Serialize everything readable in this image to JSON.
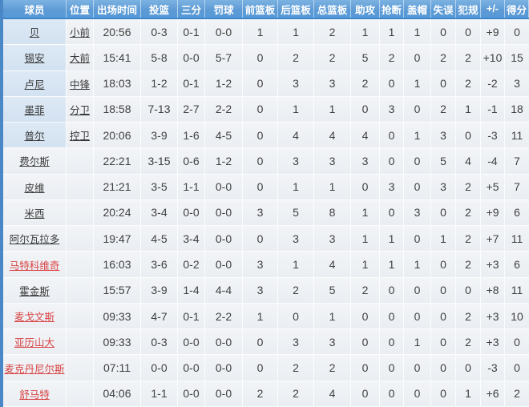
{
  "colors": {
    "header_blue": "#5c9ad4",
    "header_border": "#3e86c9",
    "left_accent": "#4a87c6",
    "starter_name_cell": "#d9e6f3",
    "red_player_name": "#d94545",
    "cell_bg": "#eef1f5",
    "body_text": "#3f3f3f"
  },
  "table": {
    "columns": [
      {
        "key": "name",
        "label": "球员"
      },
      {
        "key": "pos",
        "label": "位置"
      },
      {
        "key": "time",
        "label": "出场时间"
      },
      {
        "key": "fg",
        "label": "投篮"
      },
      {
        "key": "three",
        "label": "三分"
      },
      {
        "key": "ft",
        "label": "罚球"
      },
      {
        "key": "oreb",
        "label": "前篮板"
      },
      {
        "key": "dreb",
        "label": "后篮板"
      },
      {
        "key": "treb",
        "label": "总篮板"
      },
      {
        "key": "ast",
        "label": "助攻"
      },
      {
        "key": "stl",
        "label": "抢断"
      },
      {
        "key": "blk",
        "label": "盖帽"
      },
      {
        "key": "to",
        "label": "失误"
      },
      {
        "key": "pf",
        "label": "犯规"
      },
      {
        "key": "pm",
        "label": "+/-"
      },
      {
        "key": "pts",
        "label": "得分"
      }
    ],
    "rows": [
      {
        "name": "贝",
        "pos": "小前",
        "time": "20:56",
        "fg": "0-3",
        "three": "0-1",
        "ft": "0-0",
        "oreb": "1",
        "dreb": "1",
        "treb": "2",
        "ast": "1",
        "stl": "1",
        "blk": "1",
        "to": "0",
        "pf": "0",
        "pm": "+9",
        "pts": "0",
        "starter": true,
        "red": false
      },
      {
        "name": "锡安",
        "pos": "大前",
        "time": "15:41",
        "fg": "5-8",
        "three": "0-0",
        "ft": "5-7",
        "oreb": "0",
        "dreb": "2",
        "treb": "2",
        "ast": "5",
        "stl": "2",
        "blk": "0",
        "to": "2",
        "pf": "2",
        "pm": "+10",
        "pts": "15",
        "starter": true,
        "red": false
      },
      {
        "name": "卢尼",
        "pos": "中锋",
        "time": "18:03",
        "fg": "1-2",
        "three": "0-1",
        "ft": "1-2",
        "oreb": "0",
        "dreb": "3",
        "treb": "3",
        "ast": "2",
        "stl": "0",
        "blk": "1",
        "to": "0",
        "pf": "2",
        "pm": "-2",
        "pts": "3",
        "starter": true,
        "red": false
      },
      {
        "name": "墨菲",
        "pos": "分卫",
        "time": "18:58",
        "fg": "7-13",
        "three": "2-7",
        "ft": "2-2",
        "oreb": "0",
        "dreb": "1",
        "treb": "1",
        "ast": "0",
        "stl": "3",
        "blk": "0",
        "to": "2",
        "pf": "1",
        "pm": "-1",
        "pts": "18",
        "starter": true,
        "red": false
      },
      {
        "name": "普尔",
        "pos": "控卫",
        "time": "20:06",
        "fg": "3-9",
        "three": "1-6",
        "ft": "4-5",
        "oreb": "0",
        "dreb": "4",
        "treb": "4",
        "ast": "4",
        "stl": "0",
        "blk": "1",
        "to": "3",
        "pf": "0",
        "pm": "-3",
        "pts": "11",
        "starter": true,
        "red": false
      },
      {
        "name": "费尔斯",
        "pos": "",
        "time": "22:21",
        "fg": "3-15",
        "three": "0-6",
        "ft": "1-2",
        "oreb": "0",
        "dreb": "3",
        "treb": "3",
        "ast": "3",
        "stl": "0",
        "blk": "0",
        "to": "5",
        "pf": "4",
        "pm": "-4",
        "pts": "7",
        "starter": false,
        "red": false
      },
      {
        "name": "皮维",
        "pos": "",
        "time": "21:21",
        "fg": "3-5",
        "three": "1-1",
        "ft": "0-0",
        "oreb": "0",
        "dreb": "1",
        "treb": "1",
        "ast": "0",
        "stl": "3",
        "blk": "0",
        "to": "3",
        "pf": "2",
        "pm": "+5",
        "pts": "7",
        "starter": false,
        "red": false
      },
      {
        "name": "米西",
        "pos": "",
        "time": "20:24",
        "fg": "3-4",
        "three": "0-0",
        "ft": "0-0",
        "oreb": "3",
        "dreb": "5",
        "treb": "8",
        "ast": "1",
        "stl": "0",
        "blk": "3",
        "to": "0",
        "pf": "2",
        "pm": "+9",
        "pts": "6",
        "starter": false,
        "red": false
      },
      {
        "name": "阿尔瓦拉多",
        "pos": "",
        "time": "19:47",
        "fg": "4-5",
        "three": "3-4",
        "ft": "0-0",
        "oreb": "0",
        "dreb": "3",
        "treb": "3",
        "ast": "1",
        "stl": "1",
        "blk": "0",
        "to": "1",
        "pf": "2",
        "pm": "+7",
        "pts": "11",
        "starter": false,
        "red": false
      },
      {
        "name": "马特科维奇",
        "pos": "",
        "time": "16:03",
        "fg": "3-6",
        "three": "0-2",
        "ft": "0-0",
        "oreb": "3",
        "dreb": "1",
        "treb": "4",
        "ast": "1",
        "stl": "1",
        "blk": "1",
        "to": "0",
        "pf": "2",
        "pm": "+3",
        "pts": "6",
        "starter": false,
        "red": true
      },
      {
        "name": "霍金斯",
        "pos": "",
        "time": "15:57",
        "fg": "3-9",
        "three": "1-4",
        "ft": "4-4",
        "oreb": "3",
        "dreb": "2",
        "treb": "5",
        "ast": "2",
        "stl": "0",
        "blk": "0",
        "to": "0",
        "pf": "0",
        "pm": "+8",
        "pts": "11",
        "starter": false,
        "red": false
      },
      {
        "name": "麦戈文斯",
        "pos": "",
        "time": "09:33",
        "fg": "4-7",
        "three": "0-1",
        "ft": "2-2",
        "oreb": "1",
        "dreb": "0",
        "treb": "1",
        "ast": "0",
        "stl": "0",
        "blk": "0",
        "to": "0",
        "pf": "2",
        "pm": "+3",
        "pts": "10",
        "starter": false,
        "red": true
      },
      {
        "name": "亚历山大",
        "pos": "",
        "time": "09:33",
        "fg": "0-3",
        "three": "0-0",
        "ft": "0-0",
        "oreb": "0",
        "dreb": "3",
        "treb": "3",
        "ast": "0",
        "stl": "0",
        "blk": "1",
        "to": "0",
        "pf": "2",
        "pm": "+3",
        "pts": "0",
        "starter": false,
        "red": true
      },
      {
        "name": "麦克丹尼尔斯",
        "pos": "",
        "time": "07:11",
        "fg": "0-0",
        "three": "0-0",
        "ft": "0-0",
        "oreb": "0",
        "dreb": "2",
        "treb": "2",
        "ast": "0",
        "stl": "0",
        "blk": "0",
        "to": "0",
        "pf": "0",
        "pm": "-3",
        "pts": "0",
        "starter": false,
        "red": true
      },
      {
        "name": "舒马特",
        "pos": "",
        "time": "04:06",
        "fg": "1-1",
        "three": "0-0",
        "ft": "0-0",
        "oreb": "2",
        "dreb": "2",
        "treb": "4",
        "ast": "0",
        "stl": "0",
        "blk": "0",
        "to": "0",
        "pf": "1",
        "pm": "+6",
        "pts": "2",
        "starter": false,
        "red": true
      }
    ]
  }
}
